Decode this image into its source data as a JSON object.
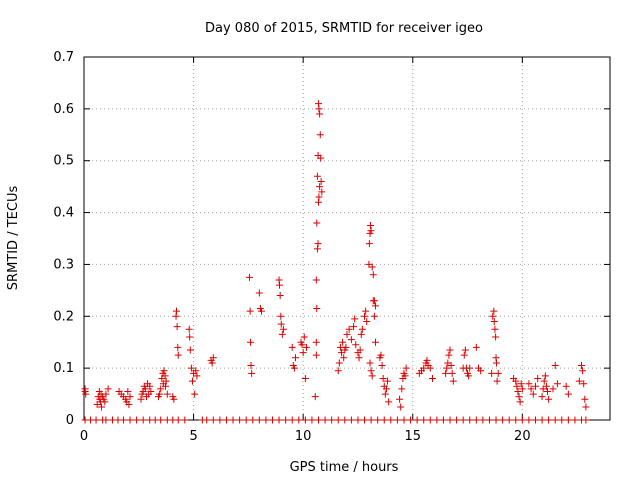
{
  "chart_data": {
    "type": "scatter",
    "title": "Day 080 of 2015, SRMTID for receiver igeo",
    "xlabel": "GPS time / hours",
    "ylabel": "SRMTID / TECUs",
    "xlim": [
      0,
      24
    ],
    "ylim": [
      0,
      0.7
    ],
    "xticks": [
      0,
      5,
      10,
      15,
      20
    ],
    "yticks": [
      0,
      0.1,
      0.2,
      0.3,
      0.4,
      0.5,
      0.6,
      0.7
    ],
    "grid": true,
    "marker": "+",
    "color": "#dd0000",
    "series": [
      {
        "name": "SRMTID",
        "points": [
          [
            0.05,
            0.06
          ],
          [
            0.05,
            0.055
          ],
          [
            0.08,
            0.05
          ],
          [
            0.6,
            0.03
          ],
          [
            0.65,
            0.045
          ],
          [
            0.7,
            0.055
          ],
          [
            0.72,
            0.04
          ],
          [
            0.75,
            0.035
          ],
          [
            0.78,
            0.05
          ],
          [
            0.8,
            0.025
          ],
          [
            0.85,
            0.045
          ],
          [
            0.9,
            0.04
          ],
          [
            0.95,
            0.035
          ],
          [
            1.0,
            0.05
          ],
          [
            1.1,
            0.06
          ],
          [
            1.6,
            0.055
          ],
          [
            1.7,
            0.05
          ],
          [
            1.8,
            0.045
          ],
          [
            1.9,
            0.04
          ],
          [
            1.95,
            0.035
          ],
          [
            2.0,
            0.055
          ],
          [
            2.05,
            0.03
          ],
          [
            2.1,
            0.045
          ],
          [
            2.6,
            0.04
          ],
          [
            2.65,
            0.05
          ],
          [
            2.7,
            0.055
          ],
          [
            2.75,
            0.065
          ],
          [
            2.8,
            0.06
          ],
          [
            2.85,
            0.045
          ],
          [
            2.9,
            0.07
          ],
          [
            2.95,
            0.05
          ],
          [
            3.0,
            0.065
          ],
          [
            3.05,
            0.055
          ],
          [
            3.4,
            0.045
          ],
          [
            3.45,
            0.05
          ],
          [
            3.5,
            0.06
          ],
          [
            3.55,
            0.08
          ],
          [
            3.6,
            0.09
          ],
          [
            3.62,
            0.07
          ],
          [
            3.65,
            0.095
          ],
          [
            3.7,
            0.085
          ],
          [
            3.72,
            0.065
          ],
          [
            3.75,
            0.075
          ],
          [
            3.8,
            0.05
          ],
          [
            4.05,
            0.045
          ],
          [
            4.1,
            0.04
          ],
          [
            4.2,
            0.2
          ],
          [
            4.22,
            0.21
          ],
          [
            4.25,
            0.18
          ],
          [
            4.28,
            0.14
          ],
          [
            4.3,
            0.125
          ],
          [
            4.8,
            0.175
          ],
          [
            4.82,
            0.16
          ],
          [
            4.85,
            0.135
          ],
          [
            4.9,
            0.1
          ],
          [
            4.95,
            0.075
          ],
          [
            5.0,
            0.09
          ],
          [
            5.05,
            0.05
          ],
          [
            5.1,
            0.095
          ],
          [
            5.15,
            0.085
          ],
          [
            5.8,
            0.115
          ],
          [
            5.85,
            0.11
          ],
          [
            5.9,
            0.12
          ],
          [
            7.55,
            0.275
          ],
          [
            7.58,
            0.21
          ],
          [
            7.6,
            0.15
          ],
          [
            7.62,
            0.105
          ],
          [
            7.65,
            0.09
          ],
          [
            8.0,
            0.245
          ],
          [
            8.05,
            0.215
          ],
          [
            8.1,
            0.21
          ],
          [
            8.9,
            0.27
          ],
          [
            8.92,
            0.26
          ],
          [
            8.95,
            0.24
          ],
          [
            8.98,
            0.2
          ],
          [
            9.0,
            0.185
          ],
          [
            9.05,
            0.165
          ],
          [
            9.1,
            0.175
          ],
          [
            9.5,
            0.14
          ],
          [
            9.55,
            0.105
          ],
          [
            9.6,
            0.1
          ],
          [
            9.65,
            0.12
          ],
          [
            9.9,
            0.15
          ],
          [
            9.95,
            0.145
          ],
          [
            10.0,
            0.13
          ],
          [
            10.05,
            0.16
          ],
          [
            10.1,
            0.08
          ],
          [
            10.15,
            0.14
          ],
          [
            10.55,
            0.045
          ],
          [
            10.6,
            0.15
          ],
          [
            10.62,
            0.38
          ],
          [
            10.65,
            0.47
          ],
          [
            10.68,
            0.51
          ],
          [
            10.7,
            0.61
          ],
          [
            10.72,
            0.6
          ],
          [
            10.75,
            0.59
          ],
          [
            10.78,
            0.55
          ],
          [
            10.8,
            0.505
          ],
          [
            10.82,
            0.46
          ],
          [
            10.85,
            0.44
          ],
          [
            10.6,
            0.27
          ],
          [
            10.62,
            0.215
          ],
          [
            10.65,
            0.33
          ],
          [
            10.68,
            0.34
          ],
          [
            10.7,
            0.42
          ],
          [
            10.72,
            0.43
          ],
          [
            10.75,
            0.45
          ],
          [
            10.6,
            0.125
          ],
          [
            11.6,
            0.095
          ],
          [
            11.65,
            0.11
          ],
          [
            11.7,
            0.14
          ],
          [
            11.75,
            0.13
          ],
          [
            11.8,
            0.15
          ],
          [
            11.85,
            0.12
          ],
          [
            11.9,
            0.135
          ],
          [
            11.95,
            0.14
          ],
          [
            12.0,
            0.165
          ],
          [
            12.1,
            0.175
          ],
          [
            12.2,
            0.155
          ],
          [
            12.3,
            0.18
          ],
          [
            12.35,
            0.195
          ],
          [
            12.4,
            0.145
          ],
          [
            12.5,
            0.13
          ],
          [
            12.55,
            0.12
          ],
          [
            12.6,
            0.135
          ],
          [
            12.65,
            0.165
          ],
          [
            12.7,
            0.175
          ],
          [
            12.8,
            0.2
          ],
          [
            12.85,
            0.21
          ],
          [
            12.9,
            0.19
          ],
          [
            13.0,
            0.3
          ],
          [
            13.02,
            0.34
          ],
          [
            13.05,
            0.36
          ],
          [
            13.07,
            0.375
          ],
          [
            13.1,
            0.365
          ],
          [
            13.15,
            0.295
          ],
          [
            13.2,
            0.23
          ],
          [
            13.25,
            0.2
          ],
          [
            13.3,
            0.15
          ],
          [
            13.05,
            0.11
          ],
          [
            13.1,
            0.095
          ],
          [
            13.15,
            0.085
          ],
          [
            13.2,
            0.28
          ],
          [
            13.25,
            0.23
          ],
          [
            13.3,
            0.22
          ],
          [
            13.5,
            0.12
          ],
          [
            13.55,
            0.125
          ],
          [
            13.6,
            0.105
          ],
          [
            13.65,
            0.08
          ],
          [
            13.7,
            0.065
          ],
          [
            13.75,
            0.05
          ],
          [
            13.8,
            0.06
          ],
          [
            13.85,
            0.075
          ],
          [
            13.9,
            0.035
          ],
          [
            14.4,
            0.04
          ],
          [
            14.45,
            0.025
          ],
          [
            14.5,
            0.06
          ],
          [
            14.55,
            0.08
          ],
          [
            14.6,
            0.09
          ],
          [
            14.65,
            0.085
          ],
          [
            14.7,
            0.1
          ],
          [
            15.3,
            0.09
          ],
          [
            15.4,
            0.095
          ],
          [
            15.5,
            0.1
          ],
          [
            15.6,
            0.11
          ],
          [
            15.65,
            0.115
          ],
          [
            15.7,
            0.105
          ],
          [
            15.8,
            0.1
          ],
          [
            15.9,
            0.08
          ],
          [
            16.5,
            0.09
          ],
          [
            16.55,
            0.1
          ],
          [
            16.6,
            0.11
          ],
          [
            16.65,
            0.125
          ],
          [
            16.7,
            0.135
          ],
          [
            16.75,
            0.105
          ],
          [
            16.8,
            0.09
          ],
          [
            16.85,
            0.075
          ],
          [
            17.3,
            0.1
          ],
          [
            17.35,
            0.125
          ],
          [
            17.4,
            0.135
          ],
          [
            17.45,
            0.1
          ],
          [
            17.5,
            0.09
          ],
          [
            17.55,
            0.085
          ],
          [
            17.6,
            0.1
          ],
          [
            17.9,
            0.14
          ],
          [
            18.0,
            0.1
          ],
          [
            18.1,
            0.095
          ],
          [
            18.6,
            0.09
          ],
          [
            18.65,
            0.2
          ],
          [
            18.7,
            0.21
          ],
          [
            18.72,
            0.19
          ],
          [
            18.75,
            0.175
          ],
          [
            18.78,
            0.16
          ],
          [
            18.8,
            0.12
          ],
          [
            18.82,
            0.11
          ],
          [
            18.85,
            0.075
          ],
          [
            18.9,
            0.09
          ],
          [
            19.6,
            0.08
          ],
          [
            19.7,
            0.075
          ],
          [
            19.75,
            0.065
          ],
          [
            19.8,
            0.055
          ],
          [
            19.85,
            0.045
          ],
          [
            19.9,
            0.035
          ],
          [
            19.95,
            0.07
          ],
          [
            20.0,
            0.06
          ],
          [
            20.3,
            0.07
          ],
          [
            20.4,
            0.06
          ],
          [
            20.5,
            0.05
          ],
          [
            20.6,
            0.065
          ],
          [
            20.7,
            0.08
          ],
          [
            20.9,
            0.045
          ],
          [
            20.95,
            0.06
          ],
          [
            21.0,
            0.075
          ],
          [
            21.05,
            0.085
          ],
          [
            21.1,
            0.065
          ],
          [
            21.15,
            0.055
          ],
          [
            21.2,
            0.04
          ],
          [
            21.4,
            0.06
          ],
          [
            21.5,
            0.105
          ],
          [
            21.6,
            0.07
          ],
          [
            22.0,
            0.065
          ],
          [
            22.1,
            0.05
          ],
          [
            22.6,
            0.075
          ],
          [
            22.7,
            0.105
          ],
          [
            22.75,
            0.095
          ],
          [
            22.8,
            0.07
          ],
          [
            22.85,
            0.04
          ],
          [
            22.9,
            0.025
          ]
        ]
      }
    ],
    "zero_row_x": [
      0.05,
      0.3,
      0.55,
      0.85,
      1.0,
      1.3,
      1.55,
      1.8,
      2.1,
      2.4,
      2.7,
      3.0,
      3.25,
      3.5,
      3.8,
      4.05,
      4.3,
      4.6,
      5.4,
      5.6,
      5.9,
      6.2,
      6.5,
      6.8,
      7.1,
      7.4,
      7.7,
      8.0,
      8.3,
      8.6,
      8.9,
      9.2,
      9.5,
      9.8,
      10.1,
      10.4,
      10.7,
      11.0,
      11.3,
      11.6,
      11.9,
      12.2,
      12.5,
      12.8,
      13.1,
      13.4,
      13.7,
      14.0,
      14.3,
      14.6,
      14.9,
      15.2,
      15.5,
      15.8,
      16.1,
      16.4,
      16.7,
      17.0,
      17.3,
      17.6,
      17.9,
      18.2,
      18.5,
      18.8,
      19.1,
      19.4,
      19.7,
      20.0,
      20.3,
      20.6,
      20.9,
      21.2,
      21.5,
      21.8,
      22.1,
      22.4,
      22.7,
      22.9
    ]
  }
}
